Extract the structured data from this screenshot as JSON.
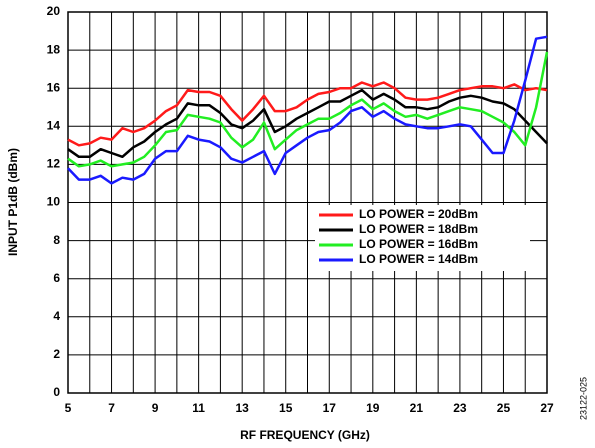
{
  "chart_data": {
    "type": "line",
    "x_label": "RF FREQUENCY (GHz)",
    "y_label": "INPUT P1dB (dBm)",
    "note": "23122-025",
    "x": [
      5,
      5.5,
      6,
      6.5,
      7,
      7.5,
      8,
      8.5,
      9,
      9.5,
      10,
      10.5,
      11,
      11.5,
      12,
      12.5,
      13,
      13.5,
      14,
      14.5,
      15,
      15.5,
      16,
      16.5,
      17,
      17.5,
      18,
      18.5,
      19,
      19.5,
      20,
      20.5,
      21,
      21.5,
      22,
      22.5,
      23,
      23.5,
      24,
      24.5,
      25,
      25.5,
      26,
      26.5,
      27
    ],
    "series": [
      {
        "name": "LO POWER = 20dBm",
        "color": "#ff1a1a",
        "values": [
          13.3,
          13.0,
          13.1,
          13.4,
          13.3,
          13.9,
          13.7,
          13.9,
          14.3,
          14.8,
          15.1,
          15.9,
          15.8,
          15.8,
          15.6,
          14.9,
          14.3,
          14.9,
          15.6,
          14.8,
          14.8,
          15.0,
          15.4,
          15.7,
          15.8,
          16.0,
          16.0,
          16.3,
          16.1,
          16.3,
          16.0,
          15.5,
          15.4,
          15.4,
          15.5,
          15.7,
          15.9,
          16.0,
          16.1,
          16.1,
          16.0,
          16.2,
          15.9,
          16.0,
          15.9
        ]
      },
      {
        "name": "LO POWER = 18dBm",
        "color": "#000000",
        "values": [
          12.8,
          12.4,
          12.4,
          12.8,
          12.6,
          12.4,
          12.9,
          13.2,
          13.7,
          14.1,
          14.4,
          15.2,
          15.1,
          15.1,
          14.7,
          14.1,
          13.9,
          14.3,
          14.9,
          13.7,
          14.0,
          14.4,
          14.7,
          15.0,
          15.3,
          15.3,
          15.6,
          15.9,
          15.4,
          15.7,
          15.4,
          15.0,
          15.0,
          14.9,
          15.0,
          15.3,
          15.5,
          15.6,
          15.5,
          15.3,
          15.2,
          14.9,
          14.3,
          13.7,
          13.1
        ]
      },
      {
        "name": "LO POWER = 16dBm",
        "color": "#22ee22",
        "values": [
          12.3,
          11.9,
          12.0,
          12.2,
          11.9,
          12.0,
          12.1,
          12.4,
          13.0,
          13.7,
          13.8,
          14.6,
          14.5,
          14.4,
          14.2,
          13.4,
          12.9,
          13.3,
          14.2,
          12.8,
          13.3,
          13.8,
          14.1,
          14.4,
          14.4,
          14.7,
          15.1,
          15.4,
          14.9,
          15.2,
          14.8,
          14.5,
          14.6,
          14.4,
          14.6,
          14.8,
          15.0,
          14.9,
          14.8,
          14.5,
          14.2,
          13.7,
          13.0,
          15.0,
          17.9
        ]
      },
      {
        "name": "LO POWER = 14dBm",
        "color": "#1a1aff",
        "values": [
          11.8,
          11.2,
          11.2,
          11.4,
          11.0,
          11.3,
          11.2,
          11.5,
          12.3,
          12.7,
          12.7,
          13.5,
          13.3,
          13.2,
          12.9,
          12.3,
          12.1,
          12.4,
          12.7,
          11.5,
          12.6,
          13.0,
          13.4,
          13.7,
          13.8,
          14.2,
          14.8,
          15.0,
          14.5,
          14.8,
          14.4,
          14.1,
          14.0,
          13.9,
          13.9,
          14.0,
          14.1,
          14.0,
          13.3,
          12.6,
          12.6,
          14.3,
          16.4,
          18.6,
          18.7
        ]
      }
    ],
    "xlim": [
      5,
      27
    ],
    "xticks": [
      5,
      7,
      9,
      11,
      13,
      15,
      17,
      19,
      21,
      23,
      25,
      27
    ],
    "xminor": [
      6,
      8,
      10,
      12,
      14,
      16,
      18,
      20,
      22,
      24,
      26
    ],
    "ylim": [
      0,
      20
    ],
    "yticks": [
      0,
      2,
      4,
      6,
      8,
      10,
      12,
      14,
      16,
      18,
      20
    ],
    "grid": true,
    "legend": "lower right"
  }
}
